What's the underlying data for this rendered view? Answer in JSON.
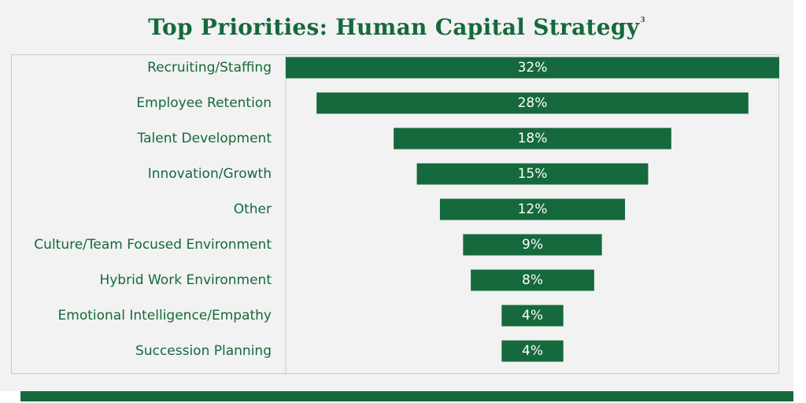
{
  "chart_data": {
    "type": "bar",
    "orientation": "horizontal",
    "layout": "centered-funnel",
    "title": "Top Priorities: Human Capital Strategy",
    "title_superscript": "3",
    "categories": [
      "Recruiting/Staffing",
      "Employee Retention",
      "Talent Development",
      "Innovation/Growth",
      "Other",
      "Culture/Team Focused Environment",
      "Hybrid Work Environment",
      "Emotional Intelligence/Empathy",
      "Succession Planning"
    ],
    "values": [
      32,
      28,
      18,
      15,
      12,
      9,
      8,
      4,
      4
    ],
    "value_labels": [
      "32%",
      "28%",
      "18%",
      "15%",
      "12%",
      "9%",
      "8%",
      "4%",
      "4%"
    ],
    "value_suffix": "%",
    "xlim": [
      0,
      32
    ],
    "grid": false,
    "legend": "none"
  },
  "colors": {
    "brand_green": "#15693c",
    "background": "#f2f2f2",
    "frame_border": "#c9c9c9"
  }
}
